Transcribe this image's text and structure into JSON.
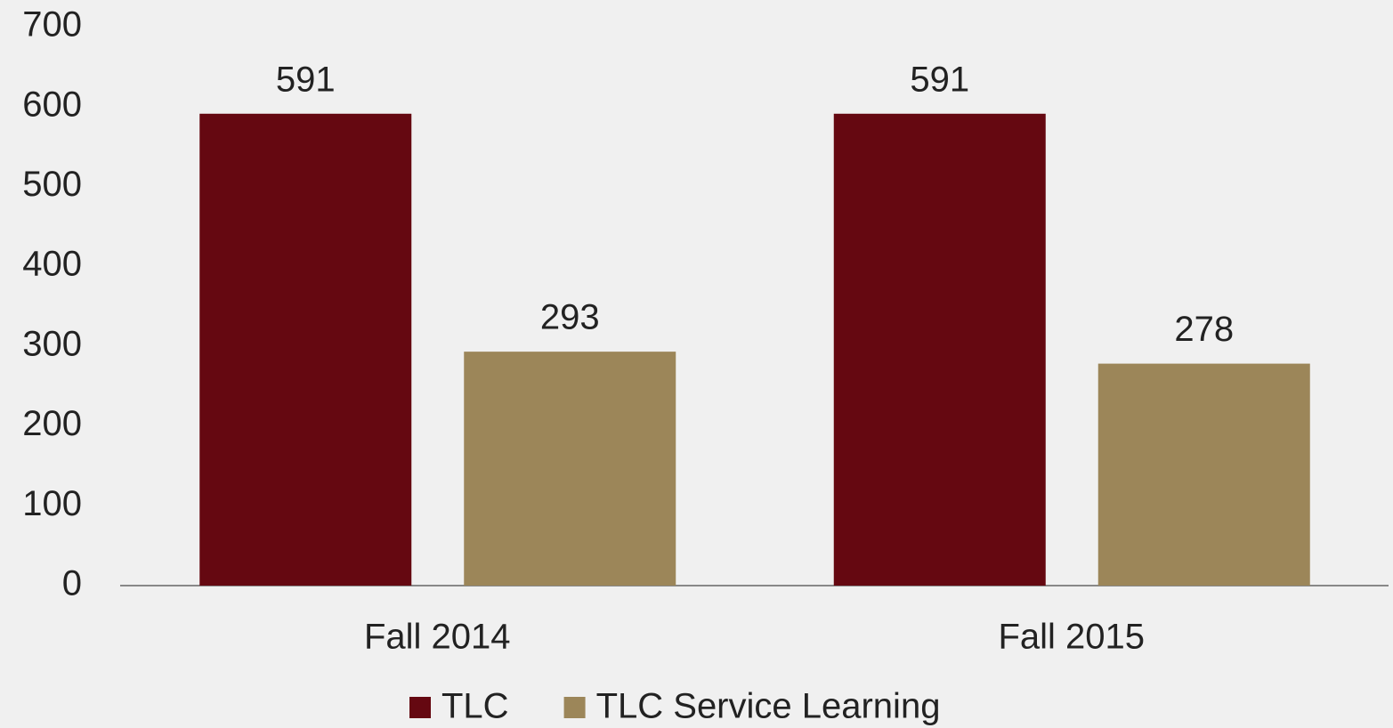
{
  "chart_data": {
    "type": "bar",
    "categories": [
      "Fall 2014",
      "Fall 2015"
    ],
    "series": [
      {
        "name": "TLC",
        "color": "#650811",
        "values": [
          591,
          591
        ]
      },
      {
        "name": "TLC Service Learning",
        "color": "#9c8659",
        "values": [
          293,
          278
        ]
      }
    ],
    "ylim": [
      0,
      700
    ],
    "yticks": [
      0,
      100,
      200,
      300,
      400,
      500,
      600,
      700
    ],
    "grid": false,
    "legend": "bottom"
  }
}
